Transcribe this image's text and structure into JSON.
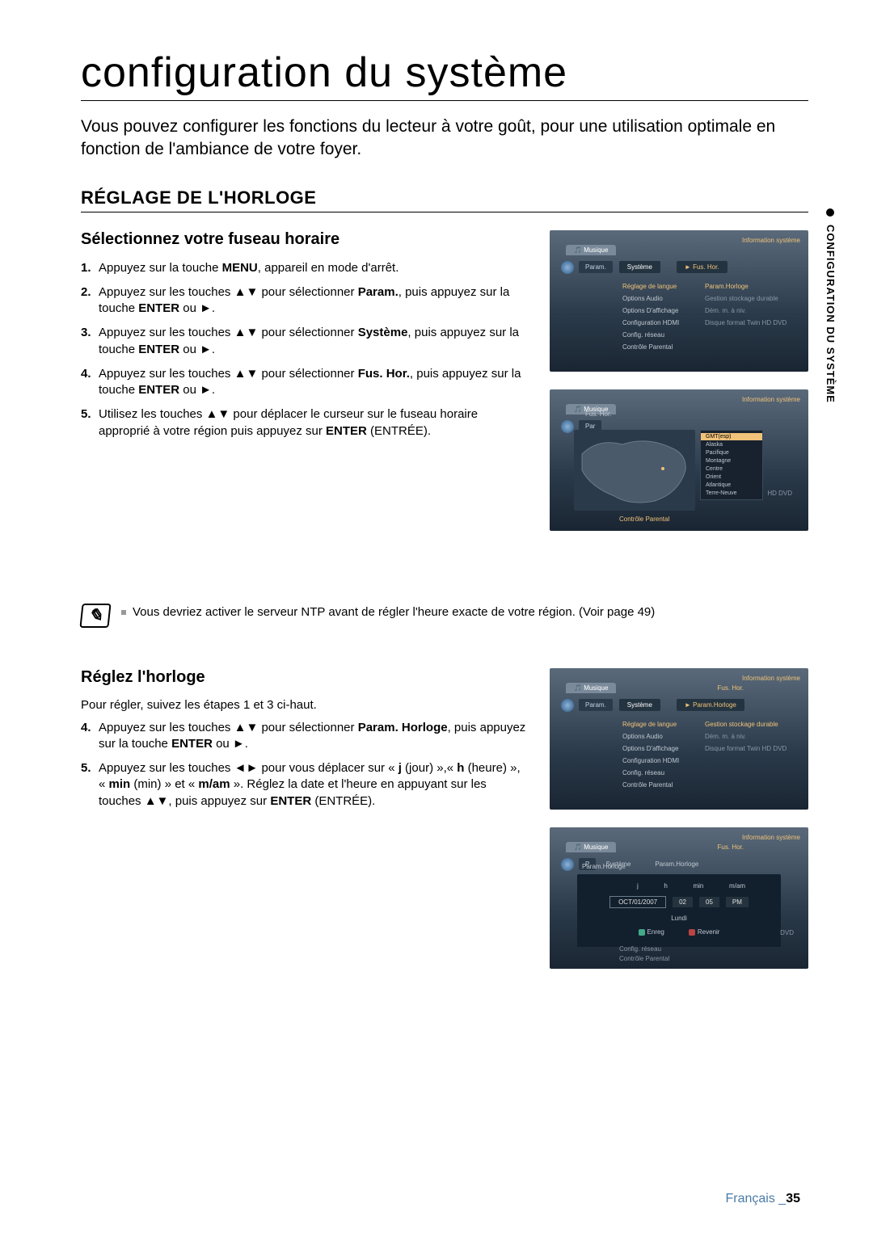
{
  "page_title": "configuration du système",
  "intro": "Vous pouvez configurer les fonctions du lecteur à votre goût, pour une utilisation optimale en fonction de l'ambiance de votre foyer.",
  "section1": {
    "heading": "RÉGLAGE DE L'HORLOGE",
    "sub1": {
      "heading": "Sélectionnez votre fuseau horaire",
      "steps": [
        "Appuyez sur la touche <b>MENU</b>, appareil en mode d'arrêt.",
        "Appuyez sur les touches ▲▼ pour sélectionner <b>Param.</b>, puis appuyez sur la touche <b>ENTER</b> ou ►.",
        "Appuyez sur les touches ▲▼ pour sélectionner <b>Système</b>, puis appuyez sur la touche <b>ENTER</b> ou ►.",
        "Appuyez sur les touches ▲▼ pour sélectionner <b>Fus. Hor.</b>, puis appuyez sur la touche <b>ENTER</b> ou ►.",
        "Utilisez les touches ▲▼ pour déplacer le curseur sur le fuseau horaire approprié à votre région puis appuyez sur <b>ENTER</b> (ENTRÉE)."
      ]
    },
    "note": "Vous devriez activer le serveur NTP avant de régler l'heure exacte de votre région. (Voir page 49)",
    "sub2": {
      "heading": "Réglez l'horloge",
      "intro": "Pour régler, suivez les étapes 1 et 3 ci-haut.",
      "steps": [
        "Appuyez sur les touches ▲▼ pour sélectionner <b>Param. Horloge</b>, puis appuyez sur la touche <b>ENTER</b> ou ►.",
        "Appuyez sur les touches ◄► pour vous déplacer sur « <b>j</b> (jour) »,« <b>h</b> (heure) », « <b>min</b> (min) » et « <b>m/am</b> ». Réglez la date et l'heure en appuyant sur les touches ▲▼, puis appuyez sur <b>ENTER</b> (ENTRÉE)."
      ]
    }
  },
  "ui_common": {
    "topbar": "Information système",
    "tab_music": "Musique",
    "param": "Param.",
    "system": "Système",
    "menu_items": [
      "Réglage de langue",
      "Options Audio",
      "Options D'affichage",
      "Configuration HDMI",
      "Config. réseau",
      "Contrôle Parental"
    ],
    "rmenu_items": [
      "Param.Horloge",
      "Gestion stockage durable",
      "Dém. m. à niv.",
      "Disque format Twin       HD DVD"
    ]
  },
  "ui1": {
    "selected": "Fus. Hor."
  },
  "ui2": {
    "breadcrumb": "Fus. Hor.",
    "dropdown": [
      "GMT(esp)",
      "Alaska",
      "Pacifique",
      "Montagne",
      "Centre",
      "Orient",
      "Atlantique",
      "Terre-Neuve"
    ],
    "side": "HD DVD",
    "bottom": "Contrôle Parental"
  },
  "ui3": {
    "top_small": "Fus. Hor.",
    "selected": "Param.Horloge",
    "rmenu_items": [
      "Gestion stockage durable",
      "Dém. m. à niv.",
      "Disque format Twin       HD DVD"
    ]
  },
  "ui4": {
    "top_small": "Fus. Hor.",
    "sys": "Système",
    "crumb": "Param.Horloge",
    "header_cols": [
      "j",
      "h",
      "min",
      "m/am"
    ],
    "date": "OCT/01/2007",
    "hour": "02",
    "min": "05",
    "ampm": "PM",
    "day": "Lundi",
    "btn_enter": "Enreg",
    "btn_return": "Revenir",
    "side": "DVD",
    "bottom": [
      "Config. réseau",
      "Contrôle Parental"
    ]
  },
  "sidetab": "CONFIGURATION DU SYSTÈME",
  "footer_lang": "Français",
  "footer_sep": "_",
  "footer_page": "35"
}
